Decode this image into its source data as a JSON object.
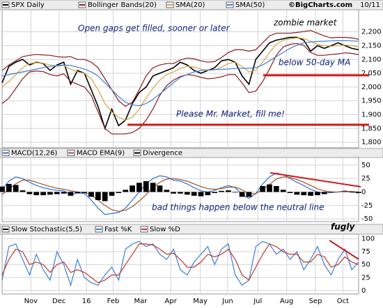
{
  "chart_data": [
    {
      "type": "line",
      "title": "SPX Daily",
      "source": "©BigCharts.com",
      "date_label": "10/11",
      "ylim": [
        1780,
        2280
      ],
      "yticks": [
        {
          "value": 2200,
          "label": "2,200"
        },
        {
          "value": 2150,
          "label": "2,150"
        },
        {
          "value": 2100,
          "label": "2,100"
        },
        {
          "value": 2050,
          "label": "2,050"
        },
        {
          "value": 2000,
          "label": "2,000"
        },
        {
          "value": 1950,
          "label": "1,950"
        },
        {
          "value": 1900,
          "label": "1,900"
        },
        {
          "value": 1850,
          "label": "1,850"
        },
        {
          "value": 1800,
          "label": "1,800"
        }
      ],
      "grid": true,
      "annotations": [
        "Open gaps get filled, sooner or later",
        "zombie market",
        "below 50-day MA",
        "Please Mr. Market, fill me!"
      ],
      "series": [
        {
          "name": "SPX Daily",
          "color": "#000000",
          "values": [
            2015,
            2075,
            2090,
            2100,
            2080,
            2090,
            2085,
            2060,
            2080,
            2090,
            2010,
            2060,
            2050,
            1990,
            1930,
            1850,
            1920,
            1860,
            1880,
            1940,
            1980,
            2000,
            2040,
            2050,
            2060,
            2070,
            2090,
            2080,
            2060,
            2050,
            2060,
            2070,
            2095,
            2100,
            2090,
            2040,
            2010,
            2100,
            2130,
            2160,
            2170,
            2175,
            2180,
            2180,
            2170,
            2130,
            2150,
            2140,
            2150,
            2160,
            2150,
            2140,
            2135
          ]
        },
        {
          "name": "Bollinger Bands(20)",
          "color": "#8b1a1a",
          "upper": [
            2060,
            2080,
            2095,
            2110,
            2115,
            2118,
            2116,
            2115,
            2110,
            2108,
            2110,
            2100,
            2100,
            2090,
            2070,
            2030,
            1990,
            1950,
            1930,
            1945,
            1990,
            2040,
            2070,
            2080,
            2085,
            2085,
            2098,
            2105,
            2102,
            2095,
            2090,
            2092,
            2107,
            2125,
            2135,
            2135,
            2130,
            2135,
            2160,
            2185,
            2195,
            2195,
            2195,
            2198,
            2201,
            2205,
            2195,
            2185,
            2178,
            2180,
            2180,
            2178,
            2173
          ],
          "lower": [
            1940,
            1960,
            1995,
            2030,
            2055,
            2058,
            2056,
            2045,
            2040,
            2048,
            2020,
            2010,
            2000,
            1970,
            1910,
            1850,
            1830,
            1830,
            1830,
            1835,
            1850,
            1880,
            1920,
            1970,
            2005,
            2025,
            2038,
            2045,
            2042,
            2035,
            2030,
            2032,
            2037,
            2045,
            2045,
            2015,
            1980,
            1985,
            2020,
            2065,
            2115,
            2145,
            2155,
            2158,
            2151,
            2125,
            2115,
            2115,
            2118,
            2120,
            2124,
            2122,
            2117
          ]
        },
        {
          "name": "SMA(20)",
          "color": "#d9a441",
          "values": [
            2000,
            2020,
            2045,
            2070,
            2085,
            2088,
            2086,
            2080,
            2075,
            2078,
            2065,
            2055,
            2050,
            2030,
            1990,
            1940,
            1910,
            1890,
            1880,
            1890,
            1920,
            1960,
            1995,
            2025,
            2045,
            2055,
            2068,
            2075,
            2072,
            2065,
            2060,
            2062,
            2072,
            2085,
            2090,
            2075,
            2055,
            2060,
            2090,
            2125,
            2155,
            2170,
            2175,
            2178,
            2176,
            2165,
            2155,
            2150,
            2148,
            2150,
            2152,
            2150,
            2145
          ]
        },
        {
          "name": "SMA(50)",
          "color": "#3b7fd9",
          "values": [
            2040,
            2045,
            2050,
            2055,
            2060,
            2065,
            2070,
            2075,
            2078,
            2080,
            2078,
            2072,
            2065,
            2055,
            2040,
            2015,
            1990,
            1965,
            1945,
            1935,
            1932,
            1940,
            1955,
            1975,
            1995,
            2015,
            2035,
            2045,
            2055,
            2060,
            2062,
            2063,
            2064,
            2065,
            2067,
            2068,
            2068,
            2070,
            2080,
            2095,
            2110,
            2125,
            2140,
            2152,
            2160,
            2163,
            2165,
            2166,
            2167,
            2168,
            2168,
            2167,
            2166
          ]
        }
      ]
    },
    {
      "type": "line",
      "ylim": [
        -55,
        64
      ],
      "yticks": [
        50,
        25,
        0,
        -25,
        -50
      ],
      "grid": true,
      "annotations": [
        "bad things happen below the neutral line"
      ],
      "series": [
        {
          "name": "MACD(12,26)",
          "color": "#2f6fd6",
          "values": [
            5,
            20,
            28,
            25,
            18,
            12,
            8,
            5,
            3,
            2,
            -5,
            -2,
            -3,
            -15,
            -30,
            -42,
            -40,
            -38,
            -30,
            -15,
            0,
            15,
            25,
            30,
            28,
            22,
            20,
            15,
            8,
            2,
            0,
            3,
            8,
            12,
            8,
            -5,
            -12,
            -3,
            15,
            28,
            35,
            32,
            25,
            18,
            12,
            5,
            0,
            -2,
            -1,
            0,
            2,
            0,
            -2
          ]
        },
        {
          "name": "MACD EMA(9)",
          "color": "#a0522d",
          "values": [
            -5,
            5,
            15,
            22,
            22,
            18,
            14,
            10,
            7,
            5,
            2,
            0,
            -1,
            -6,
            -15,
            -25,
            -33,
            -36,
            -34,
            -27,
            -17,
            -5,
            8,
            18,
            24,
            25,
            23,
            20,
            15,
            10,
            6,
            5,
            6,
            9,
            9,
            4,
            -3,
            -3,
            4,
            14,
            24,
            28,
            27,
            23,
            18,
            12,
            6,
            2,
            0,
            0,
            1,
            1,
            0
          ]
        },
        {
          "name": "Divergence",
          "color": "#000000",
          "style": "bar",
          "values": [
            10,
            15,
            13,
            3,
            -4,
            -6,
            -6,
            -5,
            -4,
            -3,
            -7,
            -2,
            -2,
            -9,
            -15,
            -17,
            -7,
            -2,
            4,
            12,
            17,
            20,
            17,
            12,
            4,
            -3,
            -3,
            -5,
            -7,
            -8,
            -6,
            -2,
            2,
            3,
            -1,
            -9,
            -9,
            0,
            11,
            14,
            11,
            4,
            -2,
            -5,
            -6,
            -7,
            -6,
            -4,
            -1,
            0,
            1,
            -1,
            -2
          ]
        }
      ]
    },
    {
      "type": "line",
      "ylim": [
        -7,
        109
      ],
      "yticks": [
        100,
        75,
        50,
        25,
        0
      ],
      "grid": true,
      "annotations": [
        "fugly"
      ],
      "xlim": [
        0,
        52
      ],
      "xticks": [
        {
          "value": 4.2,
          "label": "Nov"
        },
        {
          "value": 8.3,
          "label": "Dec"
        },
        {
          "value": 12.3,
          "label": "16"
        },
        {
          "value": 16.2,
          "label": "Feb"
        },
        {
          "value": 20.2,
          "label": "Mar"
        },
        {
          "value": 24.6,
          "label": "Apr"
        },
        {
          "value": 28.9,
          "label": "May"
        },
        {
          "value": 32.9,
          "label": "Jun"
        },
        {
          "value": 37.3,
          "label": "Jul"
        },
        {
          "value": 41.5,
          "label": "Aug"
        },
        {
          "value": 45.7,
          "label": "Sep"
        },
        {
          "value": 49.7,
          "label": "Oct"
        }
      ],
      "series": [
        {
          "name": "Slow Stochastic(5,5)",
          "color": "#000000",
          "values": null
        },
        {
          "name": "Fast %K",
          "color": "#3b7fd9",
          "values": [
            20,
            85,
            90,
            60,
            30,
            70,
            40,
            20,
            75,
            50,
            10,
            60,
            25,
            15,
            10,
            30,
            45,
            20,
            80,
            90,
            95,
            85,
            90,
            70,
            60,
            80,
            40,
            30,
            55,
            70,
            85,
            50,
            80,
            90,
            30,
            10,
            20,
            85,
            95,
            90,
            70,
            80,
            60,
            75,
            40,
            60,
            85,
            50,
            30,
            60,
            80,
            40,
            55
          ]
        },
        {
          "name": "Slow %D",
          "color": "#c0392b",
          "values": [
            30,
            60,
            80,
            75,
            50,
            55,
            50,
            35,
            50,
            55,
            35,
            40,
            35,
            25,
            15,
            20,
            30,
            30,
            50,
            70,
            90,
            90,
            88,
            80,
            70,
            72,
            60,
            45,
            45,
            55,
            70,
            65,
            70,
            80,
            60,
            30,
            20,
            45,
            70,
            90,
            85,
            75,
            70,
            70,
            55,
            55,
            70,
            65,
            45,
            50,
            65,
            55,
            50
          ]
        }
      ]
    }
  ]
}
